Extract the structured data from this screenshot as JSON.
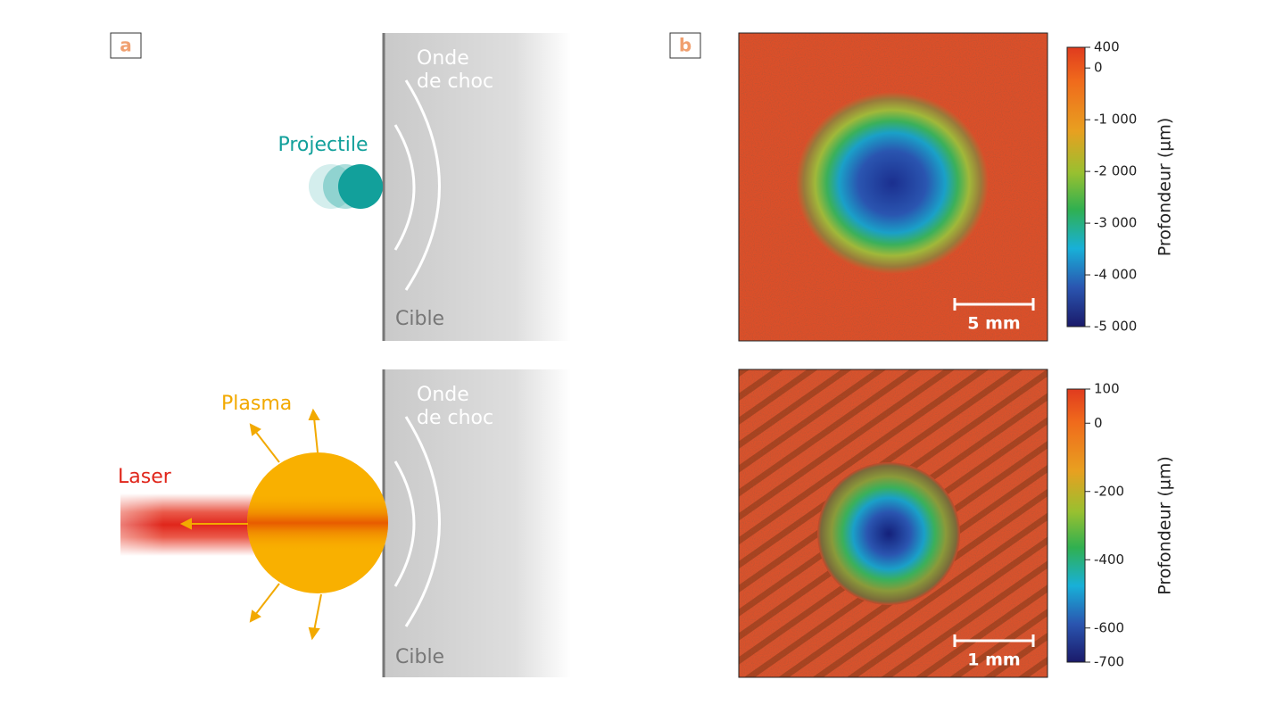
{
  "panel_a": {
    "label": "a",
    "top": {
      "projectile": "Projectile",
      "shock_wave": [
        "Onde",
        "de choc"
      ],
      "target": "Cible"
    },
    "bottom": {
      "plasma": "Plasma",
      "laser": "Laser",
      "shock_wave": [
        "Onde",
        "de choc"
      ],
      "target": "Cible"
    }
  },
  "panel_b": {
    "label": "b",
    "maps": [
      {
        "scale_bar": "5 mm",
        "colorbar": {
          "title": "Profondeur (µm)",
          "lim": [
            -5000,
            400
          ],
          "ticks": [
            400,
            0,
            {
              "value": -1000,
              "label": "-1 000"
            },
            {
              "value": -2000,
              "label": "-2 000"
            },
            {
              "value": -3000,
              "label": "-3 000"
            },
            {
              "value": -4000,
              "label": "-4 000"
            },
            {
              "value": -5000,
              "label": "-5 000"
            }
          ]
        }
      },
      {
        "scale_bar": "1 mm",
        "colorbar": {
          "title": "Profondeur (µm)",
          "lim": [
            -700,
            100
          ],
          "ticks": [
            100,
            0,
            -200,
            -400,
            -600,
            -700
          ]
        }
      }
    ]
  }
}
